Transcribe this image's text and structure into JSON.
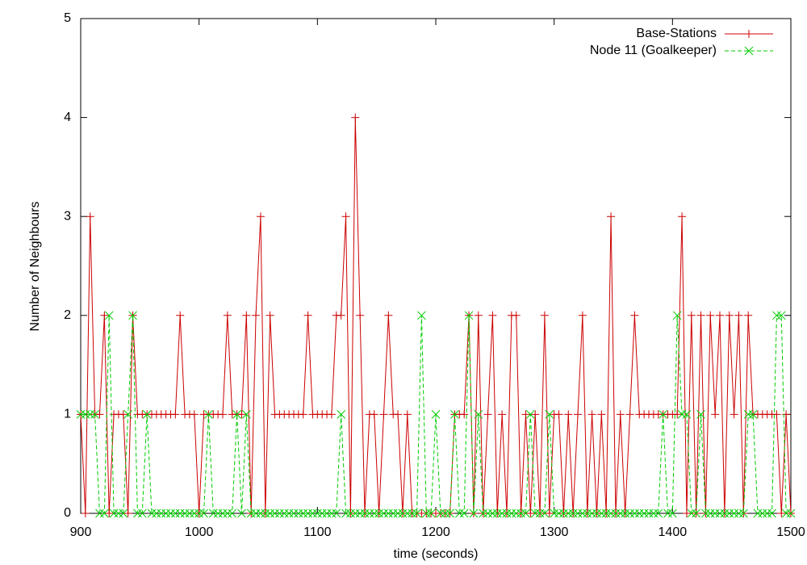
{
  "chart_data": {
    "type": "line",
    "x_label": "time (seconds)",
    "y_label": "Number of Neighbours",
    "x": [
      900,
      904,
      908,
      912,
      916,
      920,
      924,
      928,
      932,
      936,
      940,
      944,
      948,
      952,
      956,
      960,
      964,
      968,
      972,
      976,
      980,
      984,
      988,
      992,
      996,
      1000,
      1004,
      1008,
      1012,
      1016,
      1020,
      1024,
      1028,
      1032,
      1036,
      1040,
      1044,
      1048,
      1052,
      1056,
      1060,
      1064,
      1068,
      1072,
      1076,
      1080,
      1084,
      1088,
      1092,
      1096,
      1100,
      1104,
      1108,
      1112,
      1116,
      1120,
      1124,
      1128,
      1132,
      1136,
      1140,
      1144,
      1148,
      1152,
      1156,
      1160,
      1164,
      1168,
      1172,
      1176,
      1180,
      1184,
      1188,
      1192,
      1196,
      1200,
      1204,
      1208,
      1212,
      1216,
      1220,
      1224,
      1228,
      1232,
      1236,
      1240,
      1244,
      1248,
      1252,
      1256,
      1260,
      1264,
      1268,
      1272,
      1276,
      1280,
      1284,
      1288,
      1292,
      1296,
      1300,
      1304,
      1308,
      1312,
      1316,
      1320,
      1324,
      1328,
      1332,
      1336,
      1340,
      1344,
      1348,
      1352,
      1356,
      1360,
      1364,
      1368,
      1372,
      1376,
      1380,
      1384,
      1388,
      1392,
      1396,
      1400,
      1404,
      1408,
      1412,
      1416,
      1420,
      1424,
      1428,
      1432,
      1436,
      1440,
      1444,
      1448,
      1452,
      1456,
      1460,
      1464,
      1468,
      1472,
      1476,
      1480,
      1484,
      1488,
      1492,
      1496,
      1500
    ],
    "series": [
      {
        "name": "Base-Stations",
        "color": "#cc0000",
        "dashed": false,
        "marker": "plus",
        "values": [
          1,
          0,
          3,
          1,
          1,
          2,
          0,
          1,
          1,
          1,
          0,
          2,
          1,
          1,
          1,
          1,
          1,
          1,
          1,
          1,
          1,
          2,
          1,
          1,
          1,
          0,
          1,
          1,
          1,
          1,
          1,
          2,
          1,
          1,
          1,
          2,
          0,
          2,
          3,
          0,
          2,
          1,
          1,
          1,
          1,
          1,
          1,
          1,
          2,
          1,
          1,
          1,
          1,
          1,
          2,
          2,
          3,
          0,
          4,
          2,
          0,
          1,
          1,
          0,
          1,
          2,
          1,
          1,
          0,
          1,
          0,
          0,
          0,
          0,
          0,
          0,
          0,
          0,
          0,
          1,
          1,
          1,
          2,
          0,
          2,
          0,
          1,
          2,
          0,
          1,
          0,
          2,
          2,
          0,
          1,
          0,
          1,
          0,
          2,
          0,
          1,
          1,
          0,
          1,
          0,
          1,
          2,
          0,
          1,
          0,
          1,
          0,
          3,
          0,
          1,
          0,
          1,
          2,
          1,
          1,
          1,
          1,
          1,
          1,
          1,
          1,
          1,
          3,
          0,
          2,
          0,
          2,
          0,
          2,
          1,
          2,
          0,
          2,
          1,
          2,
          0,
          2,
          1,
          1,
          1,
          1,
          1,
          1,
          0,
          1,
          0
        ]
      },
      {
        "name": "Node 11 (Goalkeeper)",
        "color": "#00cc00",
        "dashed": true,
        "marker": "cross",
        "values": [
          1,
          1,
          1,
          1,
          0,
          0,
          2,
          0,
          0,
          0,
          1,
          2,
          0,
          0,
          1,
          0,
          0,
          0,
          0,
          0,
          0,
          0,
          0,
          0,
          0,
          0,
          0,
          1,
          0,
          0,
          0,
          0,
          0,
          1,
          0,
          1,
          0,
          0,
          0,
          0,
          0,
          0,
          0,
          0,
          0,
          0,
          0,
          0,
          0,
          0,
          0,
          0,
          0,
          0,
          0,
          1,
          0,
          0,
          0,
          0,
          0,
          0,
          0,
          0,
          0,
          0,
          0,
          0,
          0,
          0,
          0,
          0,
          2,
          0,
          0,
          1,
          0,
          0,
          0,
          1,
          0,
          0,
          2,
          0,
          1,
          0,
          0,
          0,
          0,
          0,
          0,
          0,
          0,
          0,
          0,
          1,
          0,
          0,
          0,
          1,
          0,
          0,
          0,
          0,
          0,
          0,
          0,
          0,
          0,
          0,
          0,
          0,
          0,
          0,
          0,
          0,
          0,
          0,
          0,
          0,
          0,
          0,
          0,
          1,
          0,
          0,
          2,
          1,
          1,
          0,
          0,
          1,
          0,
          0,
          0,
          0,
          0,
          0,
          0,
          0,
          0,
          1,
          1,
          0,
          0,
          0,
          0,
          2,
          2,
          0,
          0
        ]
      }
    ],
    "xlim": [
      900,
      1500
    ],
    "ylim": [
      0,
      5
    ],
    "xticks": [
      900,
      1000,
      1100,
      1200,
      1300,
      1400,
      1500
    ],
    "yticks": [
      0,
      1,
      2,
      3,
      4,
      5
    ],
    "legend": "top-right"
  }
}
